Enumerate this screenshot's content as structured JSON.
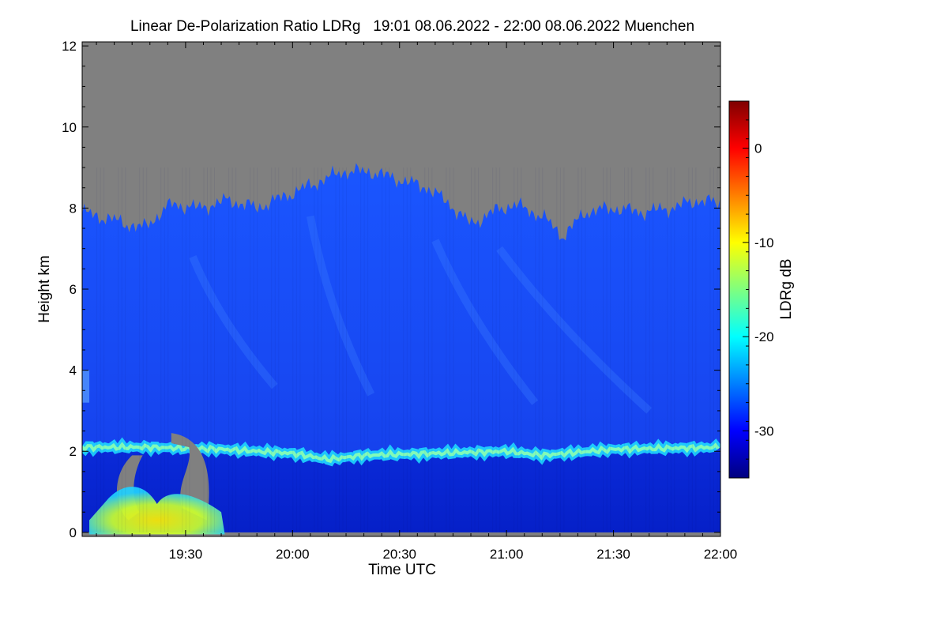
{
  "chart_data": {
    "type": "heatmap",
    "title": "Linear De-Polarization Ratio LDRg   19:01 08.06.2022 - 22:00 08.06.2022 Muenchen",
    "xlabel": "Time UTC",
    "ylabel": "Height km",
    "colorbar_label": "LDRg dB",
    "x_range_minutes_utc": [
      1141,
      1320
    ],
    "x_ticks": [
      {
        "value": 1170,
        "label": "19:30"
      },
      {
        "value": 1200,
        "label": "20:00"
      },
      {
        "value": 1230,
        "label": "20:30"
      },
      {
        "value": 1260,
        "label": "21:00"
      },
      {
        "value": 1290,
        "label": "21:30"
      },
      {
        "value": 1320,
        "label": "22:00"
      }
    ],
    "y_range_km": [
      -0.1,
      12.1
    ],
    "y_ticks": [
      0,
      2,
      4,
      6,
      8,
      10,
      12
    ],
    "colorbar_range_db": [
      -35,
      5
    ],
    "colorbar_ticks": [
      0,
      -10,
      -20,
      -30
    ],
    "no_signal_color": "#808080",
    "colormap": [
      "#00007f",
      "#0000ff",
      "#007fff",
      "#00ffff",
      "#7fff7f",
      "#ffff00",
      "#ff7f00",
      "#ff0000",
      "#7f0000"
    ],
    "signal_top_km": [
      {
        "t": 1141,
        "h": 7.9
      },
      {
        "t": 1150,
        "h": 7.7
      },
      {
        "t": 1158,
        "h": 7.5
      },
      {
        "t": 1166,
        "h": 8.1
      },
      {
        "t": 1174,
        "h": 8.0
      },
      {
        "t": 1182,
        "h": 8.2
      },
      {
        "t": 1190,
        "h": 8.0
      },
      {
        "t": 1198,
        "h": 8.3
      },
      {
        "t": 1206,
        "h": 8.6
      },
      {
        "t": 1214,
        "h": 8.9
      },
      {
        "t": 1222,
        "h": 8.9
      },
      {
        "t": 1230,
        "h": 8.7
      },
      {
        "t": 1238,
        "h": 8.5
      },
      {
        "t": 1244,
        "h": 8.1
      },
      {
        "t": 1250,
        "h": 7.6
      },
      {
        "t": 1256,
        "h": 7.9
      },
      {
        "t": 1262,
        "h": 8.1
      },
      {
        "t": 1270,
        "h": 7.8
      },
      {
        "t": 1276,
        "h": 7.3
      },
      {
        "t": 1282,
        "h": 7.9
      },
      {
        "t": 1290,
        "h": 8.0
      },
      {
        "t": 1298,
        "h": 7.9
      },
      {
        "t": 1306,
        "h": 8.0
      },
      {
        "t": 1314,
        "h": 8.2
      },
      {
        "t": 1320,
        "h": 8.1
      }
    ],
    "boundary_layer_top_km": [
      {
        "t": 1141,
        "h": 2.1
      },
      {
        "t": 1160,
        "h": 2.1
      },
      {
        "t": 1180,
        "h": 2.05
      },
      {
        "t": 1200,
        "h": 1.95
      },
      {
        "t": 1210,
        "h": 1.8
      },
      {
        "t": 1220,
        "h": 1.9
      },
      {
        "t": 1240,
        "h": 1.95
      },
      {
        "t": 1260,
        "h": 2.0
      },
      {
        "t": 1270,
        "h": 1.9
      },
      {
        "t": 1290,
        "h": 2.05
      },
      {
        "t": 1320,
        "h": 2.1
      }
    ],
    "field_ldr_db": [
      {
        "region": "free troposphere",
        "value": -28
      },
      {
        "region": "boundary layer top",
        "value": -19
      },
      {
        "region": "boundary layer",
        "value": -33
      },
      {
        "region": "depolarizing layer 19:10-19:40",
        "value": -8
      }
    ]
  }
}
